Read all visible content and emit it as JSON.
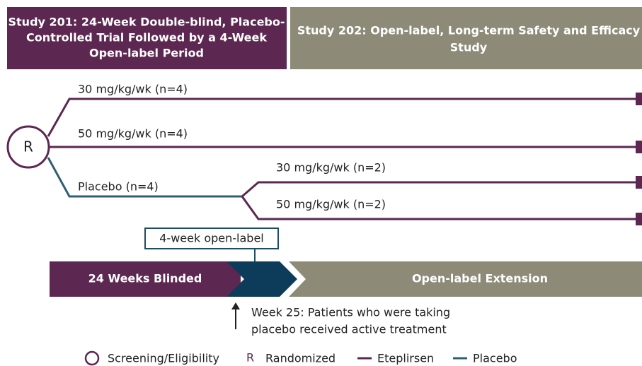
{
  "header": {
    "left_title": [
      "Study 201: 24-Week Double-blind, Placebo-",
      "Controlled Trial Followed by a 4-Week",
      "Open-label Period"
    ],
    "right_title": [
      "Study 202: Open-label, Long-term Safety and Efficacy",
      "Study"
    ]
  },
  "nodes": {
    "randomize": "R"
  },
  "arms": [
    "30 mg/kg/wk (n=4)",
    "50 mg/kg/wk (n=4)",
    "Placebo (n=4)",
    "30 mg/kg/wk (n=2)",
    "50 mg/kg/wk (n=2)"
  ],
  "open_label_box": "4-week open-label",
  "timeline": [
    "24 Weeks Blinded",
    "Open-label Extension"
  ],
  "note": [
    "Week 25: Patients who were taking",
    "placebo received active treatment"
  ],
  "legend": {
    "screening": "Screening/Eligibility",
    "r_symbol": "R",
    "randomized": "Randomized",
    "eteplirsen": "Eteplirsen",
    "placebo": "Placebo"
  }
}
